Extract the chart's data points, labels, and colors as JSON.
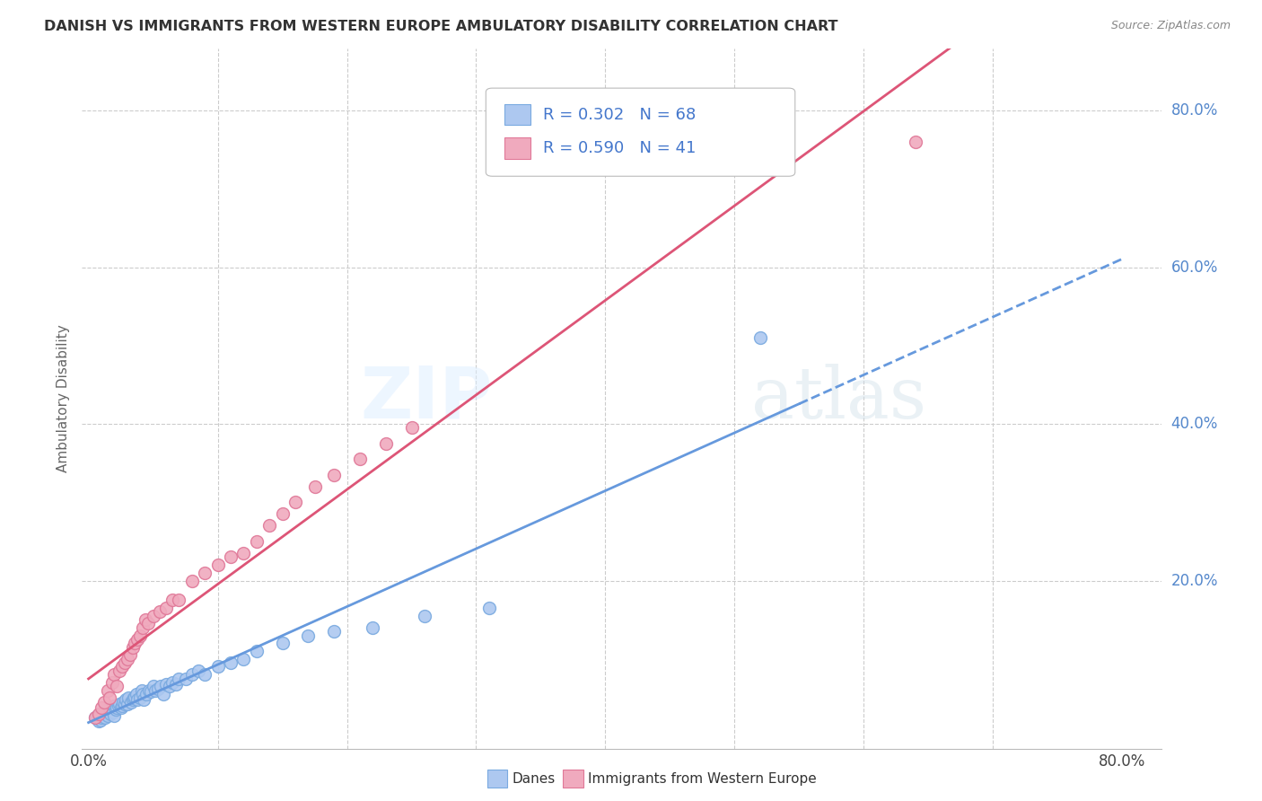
{
  "title": "DANISH VS IMMIGRANTS FROM WESTERN EUROPE AMBULATORY DISABILITY CORRELATION CHART",
  "source": "Source: ZipAtlas.com",
  "ylabel": "Ambulatory Disability",
  "ytick_labels": [
    "80.0%",
    "60.0%",
    "40.0%",
    "20.0%"
  ],
  "ytick_positions": [
    0.8,
    0.6,
    0.4,
    0.2
  ],
  "xtick_positions": [
    0.0,
    0.1,
    0.2,
    0.3,
    0.4,
    0.5,
    0.6,
    0.7,
    0.8
  ],
  "legend_r1": "R = 0.302",
  "legend_n1": "N = 68",
  "legend_r2": "R = 0.590",
  "legend_n2": "N = 41",
  "danes_color": "#adc8f0",
  "danes_edge": "#7aaae0",
  "immigrants_color": "#f0aabe",
  "immigrants_edge": "#e07898",
  "danes_line_color": "#6699dd",
  "immigrants_line_color": "#dd5577",
  "danes_x": [
    0.005,
    0.007,
    0.008,
    0.009,
    0.01,
    0.01,
    0.011,
    0.012,
    0.013,
    0.014,
    0.015,
    0.015,
    0.016,
    0.016,
    0.017,
    0.018,
    0.019,
    0.02,
    0.02,
    0.021,
    0.022,
    0.023,
    0.024,
    0.025,
    0.026,
    0.027,
    0.028,
    0.029,
    0.03,
    0.031,
    0.033,
    0.034,
    0.035,
    0.036,
    0.037,
    0.038,
    0.04,
    0.041,
    0.042,
    0.043,
    0.045,
    0.047,
    0.048,
    0.05,
    0.052,
    0.054,
    0.056,
    0.058,
    0.06,
    0.063,
    0.065,
    0.068,
    0.07,
    0.075,
    0.08,
    0.085,
    0.09,
    0.1,
    0.11,
    0.12,
    0.13,
    0.15,
    0.17,
    0.19,
    0.22,
    0.26,
    0.31,
    0.52
  ],
  "danes_y": [
    0.025,
    0.028,
    0.02,
    0.022,
    0.025,
    0.03,
    0.028,
    0.032,
    0.025,
    0.03,
    0.028,
    0.035,
    0.032,
    0.038,
    0.03,
    0.035,
    0.032,
    0.028,
    0.04,
    0.035,
    0.038,
    0.04,
    0.042,
    0.038,
    0.04,
    0.045,
    0.042,
    0.048,
    0.042,
    0.05,
    0.045,
    0.048,
    0.05,
    0.052,
    0.055,
    0.048,
    0.05,
    0.06,
    0.055,
    0.048,
    0.055,
    0.06,
    0.058,
    0.065,
    0.06,
    0.062,
    0.065,
    0.055,
    0.068,
    0.065,
    0.07,
    0.068,
    0.075,
    0.075,
    0.08,
    0.085,
    0.08,
    0.09,
    0.095,
    0.1,
    0.11,
    0.12,
    0.13,
    0.135,
    0.14,
    0.155,
    0.165,
    0.51
  ],
  "immigrants_x": [
    0.005,
    0.008,
    0.01,
    0.012,
    0.015,
    0.016,
    0.018,
    0.02,
    0.022,
    0.024,
    0.026,
    0.028,
    0.03,
    0.032,
    0.034,
    0.036,
    0.038,
    0.04,
    0.042,
    0.044,
    0.046,
    0.05,
    0.055,
    0.06,
    0.065,
    0.07,
    0.08,
    0.09,
    0.1,
    0.11,
    0.12,
    0.13,
    0.14,
    0.15,
    0.16,
    0.175,
    0.19,
    0.21,
    0.23,
    0.25,
    0.64
  ],
  "immigrants_y": [
    0.025,
    0.03,
    0.038,
    0.045,
    0.06,
    0.05,
    0.07,
    0.08,
    0.065,
    0.085,
    0.09,
    0.095,
    0.1,
    0.105,
    0.115,
    0.12,
    0.125,
    0.13,
    0.14,
    0.15,
    0.145,
    0.155,
    0.16,
    0.165,
    0.175,
    0.175,
    0.2,
    0.21,
    0.22,
    0.23,
    0.235,
    0.25,
    0.27,
    0.285,
    0.3,
    0.32,
    0.335,
    0.355,
    0.375,
    0.395,
    0.76
  ],
  "danes_line_start_x": 0.0,
  "danes_line_end_solid_x": 0.55,
  "danes_line_end_dash_x": 0.8,
  "immigrants_line_start_x": 0.0,
  "immigrants_line_end_x": 0.8
}
